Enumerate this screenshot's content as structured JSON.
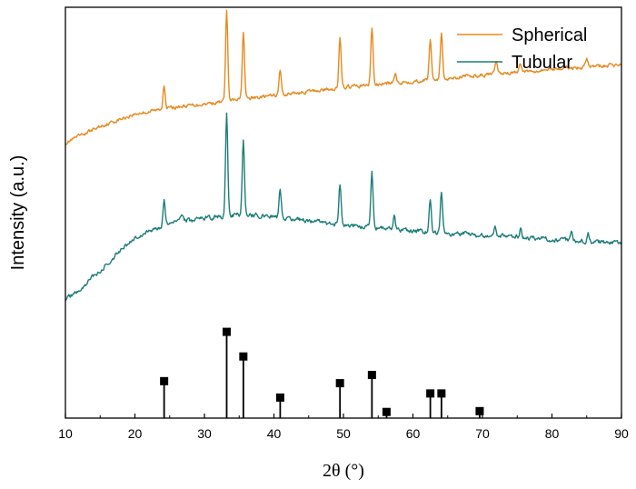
{
  "chart_data": {
    "type": "line",
    "title": "",
    "xlabel": "2θ (°)",
    "ylabel": "Intensity (a.u.)",
    "xlim": [
      10,
      90
    ],
    "ylim": [
      0,
      100
    ],
    "xticks": [
      10,
      20,
      30,
      40,
      50,
      60,
      70,
      80,
      90
    ],
    "xtick_labels": [
      "10",
      "20",
      "30",
      "40",
      "50",
      "60",
      "70",
      "80",
      "90"
    ],
    "yticks_shown": false,
    "legend": {
      "position": "top-right",
      "entries": [
        "Spherical",
        "Tubular"
      ]
    },
    "colors": {
      "Spherical": "#E8891E",
      "Tubular": "#1C7D78",
      "reference": "#000000"
    },
    "series": [
      {
        "name": "Spherical",
        "color": "#E8891E",
        "baseline": [
          [
            10,
            67
          ],
          [
            15,
            71
          ],
          [
            20,
            74
          ],
          [
            25,
            75.5
          ],
          [
            30,
            76.5
          ],
          [
            40,
            78.5
          ],
          [
            50,
            80.5
          ],
          [
            60,
            82
          ],
          [
            70,
            83.5
          ],
          [
            80,
            85
          ],
          [
            90,
            86
          ]
        ],
        "peaks": [
          [
            24.2,
            6
          ],
          [
            33.2,
            22
          ],
          [
            35.6,
            16.5
          ],
          [
            40.9,
            6
          ],
          [
            49.5,
            12
          ],
          [
            54.1,
            14
          ],
          [
            57.5,
            2
          ],
          [
            62.5,
            10
          ],
          [
            64.1,
            11
          ],
          [
            72,
            3
          ],
          [
            75.5,
            2
          ],
          [
            85,
            2
          ]
        ],
        "noise": 0.8
      },
      {
        "name": "Tubular",
        "color": "#1C7D78",
        "baseline": [
          [
            10,
            29
          ],
          [
            12,
            31
          ],
          [
            15,
            36
          ],
          [
            18,
            41
          ],
          [
            20,
            44
          ],
          [
            25,
            47.5
          ],
          [
            30,
            48.5
          ],
          [
            35,
            49.5
          ],
          [
            40,
            49
          ],
          [
            50,
            47
          ],
          [
            60,
            45.5
          ],
          [
            70,
            44.5
          ],
          [
            80,
            43.5
          ],
          [
            90,
            42.5
          ]
        ],
        "peaks": [
          [
            24.2,
            6.5
          ],
          [
            26.8,
            2
          ],
          [
            33.2,
            25
          ],
          [
            35.6,
            18
          ],
          [
            40.9,
            7
          ],
          [
            49.5,
            10
          ],
          [
            54.1,
            13.5
          ],
          [
            57.3,
            3
          ],
          [
            62.5,
            8
          ],
          [
            64.1,
            10
          ],
          [
            71.8,
            2.5
          ],
          [
            75.5,
            2
          ],
          [
            82.8,
            2
          ],
          [
            85.2,
            2
          ]
        ],
        "noise": 1.0
      }
    ],
    "reference": {
      "name": "Reference",
      "x": [
        24.2,
        33.2,
        35.6,
        40.9,
        49.5,
        54.1,
        56.2,
        62.5,
        64.1,
        69.6
      ],
      "values": [
        9,
        21,
        15,
        5,
        8.5,
        10.5,
        1.5,
        6,
        6,
        1.7
      ]
    }
  }
}
